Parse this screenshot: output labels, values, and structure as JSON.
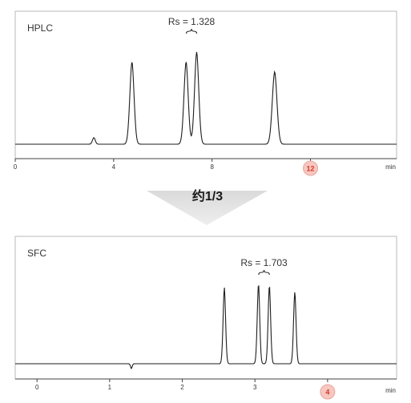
{
  "colors": {
    "frame": "#b9b9b9",
    "trace": "#1e1e1e",
    "axis": "#404040",
    "badge_fill": "#f7c7c0",
    "badge_stroke": "#e8a79d",
    "badge_text": "#d23a2a",
    "arrow_top": "#dadada",
    "arrow_bottom": "#eeeeee"
  },
  "arrow": {
    "label": "约1/3",
    "shape": "down-triangle"
  },
  "chart_data": [
    {
      "type": "line",
      "title": "HPLC",
      "xunit": "min",
      "xlim": [
        0,
        15.5
      ],
      "xticks": [
        0,
        4,
        8,
        12
      ],
      "xtick_labels": [
        "0",
        "4",
        "8",
        "12"
      ],
      "highlight_tick": {
        "value": 12,
        "label": "12"
      },
      "annotation": {
        "text": "Rs = 1.328",
        "between_peaks": [
          2,
          3
        ]
      },
      "series": [
        {
          "peaks": [
            {
              "rt": 3.2,
              "height": 0.08,
              "width": 0.06
            },
            {
              "rt": 4.75,
              "height": 1.0,
              "width": 0.09
            },
            {
              "rt": 6.95,
              "height": 1.0,
              "width": 0.09
            },
            {
              "rt": 7.38,
              "height": 1.12,
              "width": 0.09
            },
            {
              "rt": 10.55,
              "height": 0.88,
              "width": 0.1
            }
          ]
        }
      ]
    },
    {
      "type": "line",
      "title": "SFC",
      "xunit": "min",
      "xlim": [
        -0.3,
        4.95
      ],
      "xticks": [
        0,
        1,
        2,
        3,
        4
      ],
      "xtick_labels": [
        "0",
        "1",
        "2",
        "3",
        "4"
      ],
      "highlight_tick": {
        "value": 4,
        "label": "4"
      },
      "annotation": {
        "text": "Rs = 1.703",
        "between_peaks": [
          2,
          3
        ]
      },
      "series": [
        {
          "peaks": [
            {
              "rt": 1.3,
              "height": -0.06,
              "width": 0.012
            },
            {
              "rt": 2.58,
              "height": 0.95,
              "width": 0.018
            },
            {
              "rt": 3.05,
              "height": 1.0,
              "width": 0.018
            },
            {
              "rt": 3.2,
              "height": 0.98,
              "width": 0.018
            },
            {
              "rt": 3.55,
              "height": 0.9,
              "width": 0.018
            }
          ]
        }
      ]
    }
  ]
}
